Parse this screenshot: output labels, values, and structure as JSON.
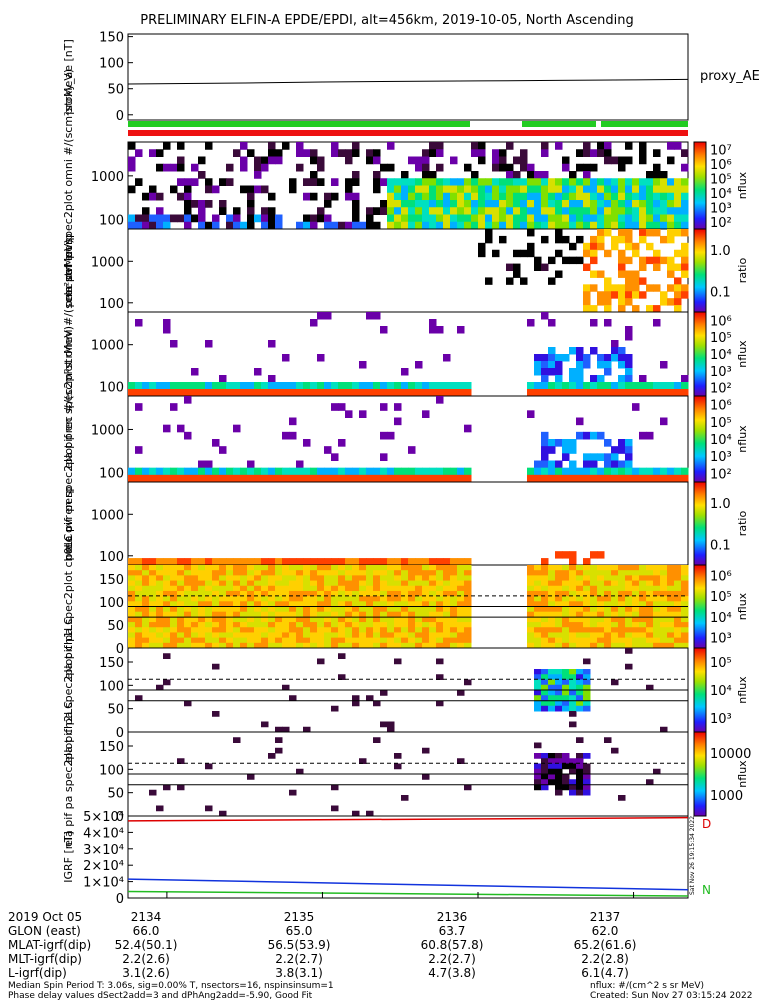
{
  "title": "PRELIMINARY ELFIN-A EPDE/EPDI, alt=456km, 2019-10-05, North Ascending",
  "colors": {
    "green_bar": "#22cc22",
    "red_bar": "#ee1111",
    "ae_line": "#000000",
    "igrf_red": "#dd0000",
    "igrf_blue": "#1133dd",
    "igrf_green": "#22bb22"
  },
  "chart_data": [
    {
      "type": "line",
      "panel": "proxy_ae",
      "ylabel": "proxy_ae [nT]",
      "ylim": [
        -10,
        155
      ],
      "yticks": [
        0,
        50,
        100,
        150
      ],
      "legend": "proxy_AE",
      "series": [
        {
          "name": "proxy_AE",
          "x": [
            2133.75,
            2134.5,
            2135.0,
            2135.5,
            2136.0,
            2136.5,
            2137.0,
            2137.35
          ],
          "values": [
            59,
            61,
            63,
            64,
            65,
            66,
            67,
            68
          ]
        }
      ]
    },
    {
      "type": "heatmap",
      "panel": "ela pef en spec2plot omni",
      "ylabel": "ela pef en spec2plot omni #/(scm²strMeV)",
      "yscale": "log",
      "yticks": [
        100,
        1000
      ],
      "ytick_labels": [
        "100",
        "1000"
      ],
      "colorbar": {
        "label": "nflux",
        "ticks": [
          "10²",
          "10³",
          "10⁴",
          "10⁵",
          "10⁶",
          "10⁷"
        ],
        "range": [
          100,
          10000000
        ]
      }
    },
    {
      "type": "heatmap",
      "panel": "prec ovr perp (electrons)",
      "ylabel": "prec ovr perp",
      "yscale": "log",
      "yticks": [
        100,
        1000
      ],
      "ytick_labels": [
        "100",
        "1000"
      ],
      "colorbar": {
        "label": "ratio",
        "ticks": [
          "0.1",
          "1.0"
        ],
        "range": [
          0.01,
          2
        ]
      }
    },
    {
      "type": "heatmap",
      "panel": "ela pif en spec2plot omni",
      "ylabel": "ela pif en spec2plot omni #/(scm²strMeV)",
      "yscale": "log",
      "yticks": [
        100,
        1000
      ],
      "ytick_labels": [
        "100",
        "1000"
      ],
      "colorbar": {
        "label": "nflux",
        "ticks": [
          "10²",
          "10³",
          "10⁴",
          "10⁵",
          "10⁶"
        ],
        "range": [
          100,
          1000000
        ]
      }
    },
    {
      "type": "heatmap",
      "panel": "ela pif en spec2plot prec",
      "ylabel": "ela pif en spec2plot prec #/(scm²strMeV)",
      "yscale": "log",
      "yticks": [
        100,
        1000
      ],
      "ytick_labels": [
        "100",
        "1000"
      ],
      "colorbar": {
        "label": "nflux",
        "ticks": [
          "10²",
          "10³",
          "10⁴",
          "10⁵",
          "10⁶"
        ],
        "range": [
          100,
          1000000
        ]
      }
    },
    {
      "type": "heatmap",
      "panel": "prec ovr perp (ions)",
      "ylabel": "prec ovr perp",
      "yscale": "log",
      "yticks": [
        100,
        1000
      ],
      "ytick_labels": [
        "100",
        "1000"
      ],
      "colorbar": {
        "label": "ratio",
        "ticks": [
          "0.1",
          "1.0"
        ],
        "range": [
          0.01,
          2
        ]
      }
    },
    {
      "type": "heatmap",
      "panel": "ela pif pa spec2plot ch0LC",
      "ylabel": "ela pif pa spec2plot ch0LC",
      "ylim": [
        0,
        180
      ],
      "yticks": [
        0,
        50,
        100,
        150
      ],
      "colorbar": {
        "label": "nflux",
        "ticks": [
          "10³",
          "10⁴",
          "10⁵",
          "10⁶"
        ],
        "range": [
          1000,
          1000000
        ]
      }
    },
    {
      "type": "heatmap",
      "panel": "ela pif pa spec2plot ch1LC",
      "ylabel": "ela pif pa spec2plot ch1LC",
      "ylim": [
        0,
        180
      ],
      "yticks": [
        0,
        50,
        100,
        150
      ],
      "colorbar": {
        "label": "nflux",
        "ticks": [
          "10³",
          "10⁴",
          "10⁵"
        ],
        "range": [
          1000,
          100000
        ]
      }
    },
    {
      "type": "heatmap",
      "panel": "ela pif pa spec2plot ch2LC",
      "ylabel": "ela pif pa spec2plot ch2LC",
      "ylim": [
        0,
        180
      ],
      "yticks": [
        0,
        50,
        100,
        150
      ],
      "colorbar": {
        "label": "nflux",
        "ticks": [
          "1000",
          "10000"
        ],
        "range": [
          500,
          20000
        ]
      }
    },
    {
      "type": "line",
      "panel": "IGRF",
      "ylabel": "IGRF [nT]",
      "ylim": [
        0,
        50000
      ],
      "yticks": [
        0,
        10000,
        20000,
        30000,
        40000,
        50000
      ],
      "ytick_labels": [
        "0",
        "1×10⁴",
        "2×10⁴",
        "3×10⁴",
        "4×10⁴",
        "5×10⁴"
      ],
      "series": [
        {
          "name": "D",
          "x": [
            2133.75,
            2137.35
          ],
          "values": [
            47000,
            49000
          ]
        },
        {
          "name": "",
          "x": [
            2133.75,
            2137.35
          ],
          "values": [
            11500,
            5000
          ]
        },
        {
          "name": "N",
          "x": [
            2133.75,
            2137.35
          ],
          "values": [
            4000,
            1200
          ]
        }
      ]
    }
  ],
  "igrf_labels": {
    "d": "D",
    "n": "N"
  },
  "side_stamp": "Sat Nov 26 19:15:34 2022",
  "footer": {
    "labels": [
      "2019 Oct 05",
      "GLON (east)",
      "MLAT-igrf(dip)",
      "MLT-igrf(dip)",
      "L-igrf(dip)"
    ],
    "columns": [
      {
        "time": "2134",
        "glon": "66.0",
        "mlat": "52.4(50.1)",
        "mlt": "2.2(2.6)",
        "l": "3.1(2.6)"
      },
      {
        "time": "2135",
        "glon": "65.0",
        "mlat": "56.5(53.9)",
        "mlt": "2.2(2.7)",
        "l": "3.8(3.1)"
      },
      {
        "time": "2136",
        "glon": "63.7",
        "mlat": "60.8(57.8)",
        "mlt": "2.2(2.7)",
        "l": "4.7(3.8)"
      },
      {
        "time": "2137",
        "glon": "62.0",
        "mlat": "65.2(61.6)",
        "mlt": "2.2(2.8)",
        "l": "6.1(4.7)"
      }
    ],
    "note1": "Median Spin Period T: 3.06s, sig=0.00% T, nsectors=16, nspinsinsum=1",
    "note2": "Phase delay values dSect2add=3 and dPhAng2add=-5.90, Good Fit",
    "units": "nflux: #/(cm^2 s sr MeV)",
    "created": "Created: Sun Nov 27 03:15:24 2022"
  }
}
